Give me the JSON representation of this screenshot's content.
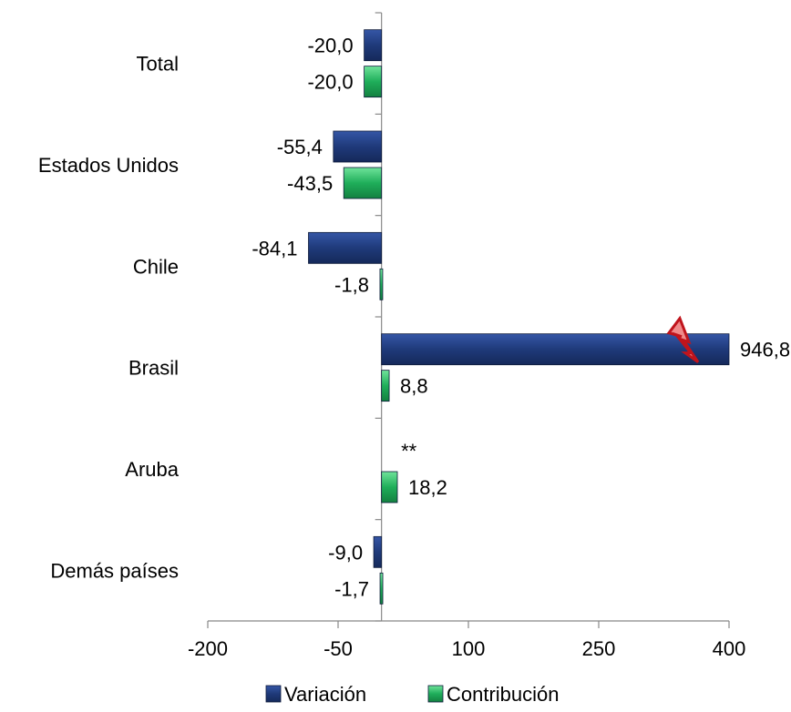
{
  "chart_data": {
    "type": "bar",
    "orientation": "horizontal",
    "categories": [
      "Total",
      "Estados Unidos",
      "Chile",
      "Brasil",
      "Aruba",
      "Demás países"
    ],
    "series": [
      {
        "name": "Variación",
        "color": "#1f3a7a",
        "values": [
          -20.0,
          -55.4,
          -84.1,
          946.8,
          null,
          -9.0
        ],
        "labels": [
          "-20,0",
          "-55,4",
          "-84,1",
          "946,8",
          "**",
          "-9,0"
        ]
      },
      {
        "name": "Contribución",
        "color": "#1fae5a",
        "values": [
          -20.0,
          -43.5,
          -1.8,
          8.8,
          18.2,
          -1.7
        ],
        "labels": [
          "-20,0",
          "-43,5",
          "-1,8",
          "8,8",
          "18,2",
          "-1,7"
        ]
      }
    ],
    "axis": {
      "min": -200,
      "max": 400,
      "ticks": [
        -200,
        -50,
        100,
        250,
        400
      ],
      "tick_labels": [
        "-200",
        "-50",
        "100",
        "250",
        "400"
      ]
    },
    "axis_break": {
      "series": 0,
      "category": 3,
      "shown_value": 946.8,
      "drawn_at": 400
    },
    "grid": false,
    "legend_position": "bottom"
  }
}
